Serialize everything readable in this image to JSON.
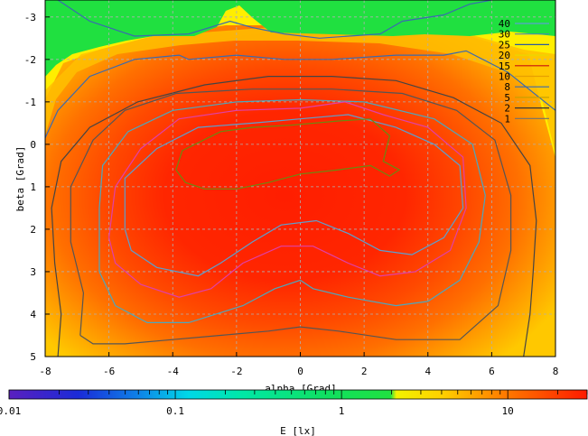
{
  "chart_data": {
    "type": "heatmap",
    "title": "",
    "xlabel": "alpha [Grad]",
    "ylabel": "beta [Grad]",
    "xlim": [
      -8,
      8
    ],
    "ylim": [
      -3.4,
      5
    ],
    "y_inverted": true,
    "xticks": [
      "-8",
      "-6",
      "-4",
      "-2",
      "0",
      "2",
      "4",
      "6",
      "8"
    ],
    "yticks": [
      "-3",
      "-2",
      "-1",
      "0",
      "1",
      "2",
      "3",
      "4",
      "5"
    ],
    "grid": true,
    "colorbar": {
      "label": "E [lx]",
      "scale": "log",
      "range": [
        0.01,
        30
      ],
      "ticks": [
        "0.01",
        "0.1",
        "1",
        "10"
      ]
    },
    "contour_levels": [
      "40",
      "30",
      "25",
      "20",
      "15",
      "10",
      "8",
      "5",
      "2",
      "1"
    ],
    "contour_legend_position": "top-right",
    "contours": [
      {
        "level": "2",
        "color": "#444444",
        "points": [
          [
            -7.6,
            5
          ],
          [
            -7.5,
            4.0
          ],
          [
            -7.7,
            2.8
          ],
          [
            -7.8,
            1.5
          ],
          [
            -7.5,
            0.4
          ],
          [
            -6.6,
            -0.4
          ],
          [
            -5.1,
            -1.0
          ],
          [
            -3.0,
            -1.4
          ],
          [
            -1.0,
            -1.6
          ],
          [
            1.0,
            -1.6
          ],
          [
            3.0,
            -1.5
          ],
          [
            4.8,
            -1.1
          ],
          [
            6.3,
            -0.5
          ],
          [
            7.2,
            0.5
          ],
          [
            7.4,
            1.8
          ],
          [
            7.3,
            3.0
          ],
          [
            7.2,
            4.0
          ],
          [
            7.0,
            5
          ]
        ]
      },
      {
        "level": "5",
        "color": "#3a6ab0",
        "points": [
          [
            -7.6,
            -3.4
          ],
          [
            -6.6,
            -2.9
          ],
          [
            -5.2,
            -2.55
          ],
          [
            -3.5,
            -2.6
          ],
          [
            -2.2,
            -2.9
          ],
          [
            -1.5,
            -2.75
          ],
          [
            -0.5,
            -2.6
          ],
          [
            0.6,
            -2.5
          ],
          [
            2.5,
            -2.6
          ],
          [
            3.2,
            -2.9
          ],
          [
            4.5,
            -3.05
          ],
          [
            5.3,
            -3.3
          ],
          [
            6.0,
            -3.4
          ]
        ]
      },
      {
        "level": "8",
        "color": "#3a6ab0",
        "points": [
          [
            -8.0,
            -0.15
          ],
          [
            -7.6,
            -0.8
          ],
          [
            -6.6,
            -1.6
          ],
          [
            -5.2,
            -2.0
          ],
          [
            -3.8,
            -2.1
          ],
          [
            -3.5,
            -2.0
          ],
          [
            -2.0,
            -2.1
          ],
          [
            -0.5,
            -2.0
          ],
          [
            1.0,
            -2.0
          ],
          [
            3.0,
            -2.1
          ],
          [
            4.5,
            -2.1
          ],
          [
            5.2,
            -2.2
          ],
          [
            6.5,
            -1.7
          ],
          [
            7.5,
            -1.1
          ],
          [
            8.0,
            -0.8
          ]
        ]
      },
      {
        "level": "10",
        "color": "#555555",
        "points": [
          [
            -6.9,
            4.5
          ],
          [
            -6.8,
            3.5
          ],
          [
            -7.2,
            2.3
          ],
          [
            -7.2,
            1.0
          ],
          [
            -6.5,
            -0.1
          ],
          [
            -5.5,
            -0.8
          ],
          [
            -3.9,
            -1.2
          ],
          [
            -1.5,
            -1.3
          ],
          [
            1.0,
            -1.3
          ],
          [
            3.2,
            -1.2
          ],
          [
            4.9,
            -0.8
          ],
          [
            6.1,
            -0.1
          ],
          [
            6.6,
            1.2
          ],
          [
            6.6,
            2.5
          ],
          [
            6.2,
            3.8
          ],
          [
            5.0,
            4.6
          ],
          [
            3.0,
            4.6
          ],
          [
            1.2,
            4.4
          ],
          [
            0,
            4.3
          ],
          [
            -1.0,
            4.4
          ],
          [
            -2.5,
            4.5
          ],
          [
            -4.0,
            4.6
          ],
          [
            -5.5,
            4.7
          ],
          [
            -6.5,
            4.7
          ],
          [
            -6.9,
            4.5
          ]
        ]
      },
      {
        "level": "15",
        "color": "#4aa8c0",
        "points": [
          [
            -6.3,
            3.0
          ],
          [
            -6.3,
            1.5
          ],
          [
            -6.2,
            0.5
          ],
          [
            -5.4,
            -0.3
          ],
          [
            -4.0,
            -0.8
          ],
          [
            -2.0,
            -1.0
          ],
          [
            0,
            -1.05
          ],
          [
            2.0,
            -1.0
          ],
          [
            4.2,
            -0.6
          ],
          [
            5.4,
            0
          ],
          [
            5.8,
            1.2
          ],
          [
            5.6,
            2.3
          ],
          [
            5.0,
            3.2
          ],
          [
            4.0,
            3.7
          ],
          [
            3.0,
            3.8
          ],
          [
            1.5,
            3.6
          ],
          [
            0.4,
            3.4
          ],
          [
            0,
            3.2
          ],
          [
            -0.8,
            3.4
          ],
          [
            -1.8,
            3.8
          ],
          [
            -3.5,
            4.2
          ],
          [
            -4.8,
            4.2
          ],
          [
            -5.8,
            3.8
          ],
          [
            -6.3,
            3.0
          ]
        ]
      },
      {
        "level": "20",
        "color": "#e040a8",
        "points": [
          [
            -6.0,
            2.2
          ],
          [
            -5.8,
            1.0
          ],
          [
            -5.0,
            0.1
          ],
          [
            -3.8,
            -0.6
          ],
          [
            -2.0,
            -0.8
          ],
          [
            0,
            -0.85
          ],
          [
            1.4,
            -1.0
          ],
          [
            2.6,
            -0.7
          ],
          [
            4.0,
            -0.4
          ],
          [
            5.1,
            0.3
          ],
          [
            5.2,
            1.5
          ],
          [
            4.7,
            2.5
          ],
          [
            3.6,
            3.0
          ],
          [
            2.5,
            3.1
          ],
          [
            1.5,
            2.8
          ],
          [
            0.4,
            2.4
          ],
          [
            -0.6,
            2.4
          ],
          [
            -1.8,
            2.8
          ],
          [
            -2.8,
            3.4
          ],
          [
            -3.8,
            3.6
          ],
          [
            -5.0,
            3.3
          ],
          [
            -5.8,
            2.8
          ],
          [
            -6.0,
            2.2
          ]
        ]
      },
      {
        "level": "25",
        "color": "#5aa0d0",
        "points": [
          [
            -5.5,
            2.0
          ],
          [
            -5.5,
            0.8
          ],
          [
            -4.5,
            0.1
          ],
          [
            -3.2,
            -0.4
          ],
          [
            -1.5,
            -0.5
          ],
          [
            0,
            -0.6
          ],
          [
            1.5,
            -0.7
          ],
          [
            3.0,
            -0.4
          ],
          [
            4.2,
            0
          ],
          [
            5.0,
            0.5
          ],
          [
            5.1,
            1.5
          ],
          [
            4.5,
            2.2
          ],
          [
            3.5,
            2.6
          ],
          [
            2.5,
            2.5
          ],
          [
            1.5,
            2.1
          ],
          [
            0.5,
            1.8
          ],
          [
            -0.6,
            1.9
          ],
          [
            -1.5,
            2.3
          ],
          [
            -2.5,
            2.8
          ],
          [
            -3.2,
            3.1
          ],
          [
            -4.5,
            2.9
          ],
          [
            -5.3,
            2.5
          ],
          [
            -5.5,
            2.0
          ]
        ]
      },
      {
        "level": "30",
        "color": "#6a8a10",
        "points": [
          [
            -3.9,
            0.6
          ],
          [
            -3.7,
            0.15
          ],
          [
            -2.5,
            -0.3
          ],
          [
            -1.5,
            -0.4
          ],
          [
            -0.3,
            -0.45
          ],
          [
            1.2,
            -0.55
          ],
          [
            2.2,
            -0.6
          ],
          [
            2.8,
            -0.2
          ],
          [
            2.6,
            0.4
          ],
          [
            3.1,
            0.6
          ],
          [
            2.8,
            0.75
          ],
          [
            2.2,
            0.5
          ],
          [
            1.2,
            0.6
          ],
          [
            0,
            0.7
          ],
          [
            -1.0,
            0.9
          ],
          [
            -2.0,
            1.05
          ],
          [
            -3.0,
            1.05
          ],
          [
            -3.6,
            0.9
          ],
          [
            -3.9,
            0.6
          ]
        ]
      }
    ]
  }
}
